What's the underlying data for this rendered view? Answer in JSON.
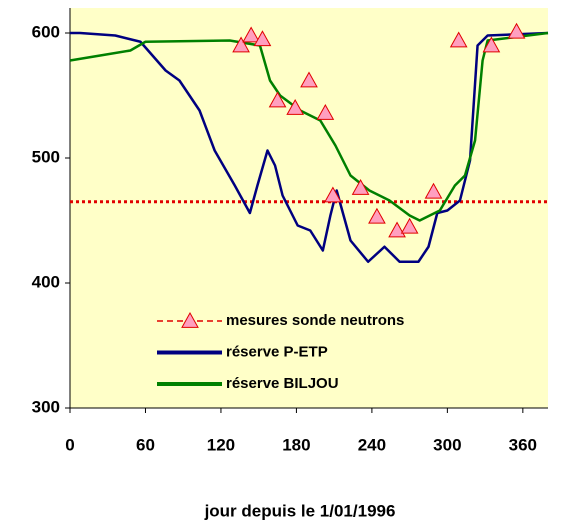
{
  "chart_data": {
    "type": "line",
    "xlabel": "jour depuis le 1/01/1996",
    "xlim": [
      0,
      380
    ],
    "xticks": [
      0,
      60,
      120,
      180,
      240,
      300,
      360
    ],
    "ylim": [
      300,
      620
    ],
    "yticks": [
      300,
      400,
      500,
      600
    ],
    "reference_line": {
      "value": 465,
      "color": "#e00000"
    },
    "series": [
      {
        "name": "mesures sonde neutrons",
        "color": "#e00000",
        "marker_fill": "#ff9fbf",
        "style": "markers",
        "x": [
          136,
          144,
          153,
          165,
          179,
          190,
          203,
          209,
          231,
          244,
          260,
          270,
          289,
          309,
          335,
          355
        ],
        "values": [
          590,
          598,
          595,
          546,
          540,
          562,
          536,
          470,
          476,
          453,
          442,
          445,
          473,
          594,
          590,
          601
        ]
      },
      {
        "name": "réserve P-ETP",
        "color": "#000080",
        "style": "line",
        "x": [
          0,
          8,
          36,
          56,
          76,
          87,
          103,
          115,
          131,
          143,
          149,
          157,
          163,
          169,
          181,
          191,
          201,
          207,
          212,
          223,
          237,
          250,
          262,
          277,
          285,
          292,
          300,
          310,
          318,
          324,
          332,
          380
        ],
        "values": [
          600,
          600,
          598,
          593,
          570,
          562,
          538,
          506,
          478,
          456,
          478,
          506,
          494,
          470,
          446,
          442,
          426,
          454,
          474,
          434,
          417,
          429,
          417,
          417,
          429,
          456,
          458,
          466,
          498,
          590,
          598,
          600
        ]
      },
      {
        "name": "réserve BILJOU",
        "color": "#008000",
        "style": "line",
        "x": [
          0,
          24,
          48,
          60,
          127,
          151,
          159,
          167,
          183,
          199,
          211,
          223,
          238,
          254,
          270,
          278,
          294,
          306,
          314,
          322,
          328,
          332,
          380
        ],
        "values": [
          578,
          582,
          586,
          593,
          594,
          590,
          562,
          550,
          538,
          530,
          510,
          486,
          474,
          466,
          454,
          450,
          458,
          478,
          486,
          514,
          578,
          594,
          600
        ]
      }
    ]
  }
}
